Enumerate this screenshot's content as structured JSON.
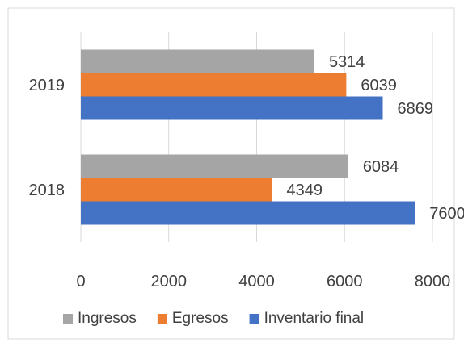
{
  "chart_data": {
    "type": "bar",
    "orientation": "horizontal",
    "categories": [
      "2019",
      "2018"
    ],
    "series": [
      {
        "name": "Ingresos",
        "color": "#a5a5a5",
        "values": [
          5314,
          6084
        ]
      },
      {
        "name": "Egresos",
        "color": "#ed7d31",
        "values": [
          6039,
          4349
        ]
      },
      {
        "name": "Inventario final",
        "color": "#4472c4",
        "values": [
          6869,
          7600
        ]
      }
    ],
    "xlim": [
      0,
      8000
    ],
    "xticks": [
      "0",
      "2000",
      "4000",
      "6000",
      "8000"
    ],
    "grid": true,
    "legend_position": "bottom"
  }
}
